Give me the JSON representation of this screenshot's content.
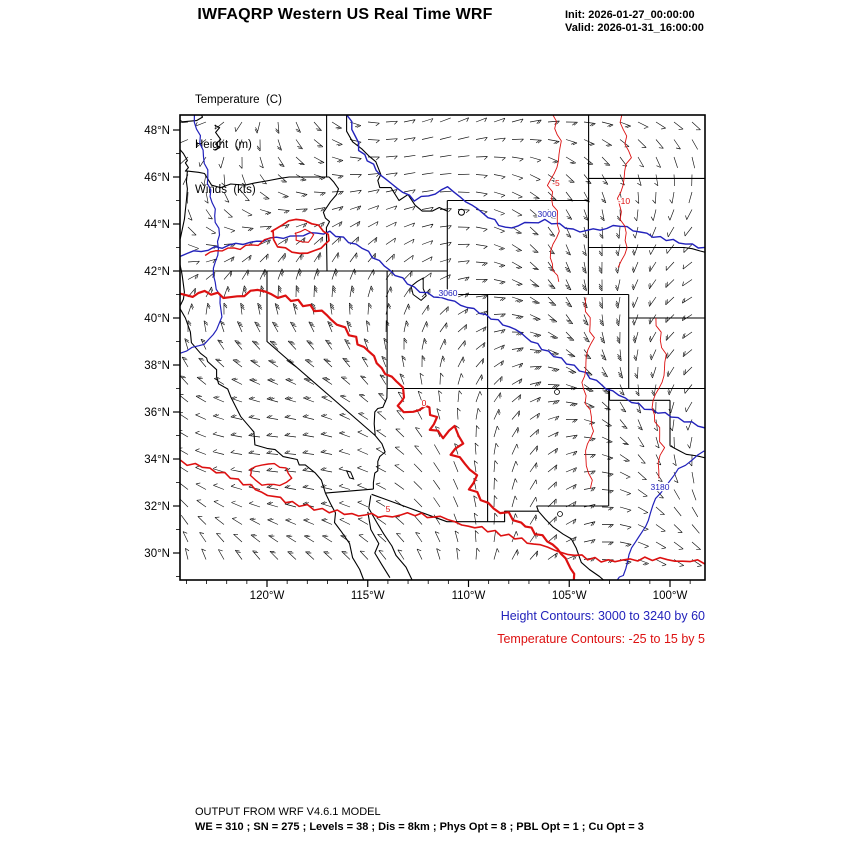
{
  "header": {
    "title": "IWFAQRP Western US Real Time WRF",
    "init": "Init: 2026-01-27_00:00:00",
    "valid": "Valid: 2026-01-31_16:00:00"
  },
  "legend": {
    "temperature": "Temperature  (C)",
    "height": "Height  (m)",
    "winds": "Winds  (kts)"
  },
  "captions": {
    "height": "Height Contours: 3000 to 3240 by 60",
    "temperature": "Temperature Contours: -25 to 15 by 5"
  },
  "footer": {
    "line1": "OUTPUT FROM WRF V4.6.1 MODEL",
    "line2": "WE = 310 ; SN = 275 ; Levels = 38 ; Dis = 8km ; Phys Opt = 8 ; PBL Opt = 1 ; Cu Opt = 3"
  },
  "colors": {
    "height_contour": "#2222bb",
    "temperature_contour": "#dd1111",
    "map_line": "#000000",
    "wind_barb": "#111111",
    "frame": "#000000"
  },
  "chart_data": {
    "type": "contour-map",
    "title": "IWFAQRP Western US Real Time WRF",
    "region": "Western United States",
    "init_time": "2026-01-27_00:00:00",
    "valid_time": "2026-01-31_16:00:00",
    "model": "WRF V4.6.1",
    "fields": [
      {
        "name": "Temperature",
        "units": "C",
        "render": "red contour lines",
        "levels_spec": "-25 to 15 by 5",
        "levels": [
          -25,
          -20,
          -15,
          -10,
          -5,
          0,
          5,
          10,
          15
        ]
      },
      {
        "name": "Height",
        "units": "m",
        "render": "blue contour lines",
        "levels_spec": "3000 to 3240 by 60",
        "levels": [
          3000,
          3060,
          3120,
          3180,
          3240
        ]
      },
      {
        "name": "Winds",
        "units": "kts",
        "render": "wind barbs on model grid"
      }
    ],
    "lat_ticks": [
      "48°N",
      "46°N",
      "44°N",
      "42°N",
      "40°N",
      "38°N",
      "36°N",
      "34°N",
      "32°N",
      "30°N"
    ],
    "lat_tick_values": [
      48,
      46,
      44,
      42,
      40,
      38,
      36,
      34,
      32,
      30
    ],
    "lon_ticks": [
      "120°W",
      "115°W",
      "110°W",
      "105°W",
      "100°W"
    ],
    "lon_tick_values": [
      -120,
      -115,
      -110,
      -105,
      -100
    ],
    "grid_config": {
      "WE": 310,
      "SN": 275,
      "Levels": 38,
      "Dis": "8km",
      "Phys_Opt": 8,
      "PBL_Opt": 1,
      "Cu_Opt": 3
    },
    "contour_labels_visible": [
      "3000",
      "3060",
      "3180",
      "0",
      "5",
      "-5",
      "-10"
    ]
  }
}
